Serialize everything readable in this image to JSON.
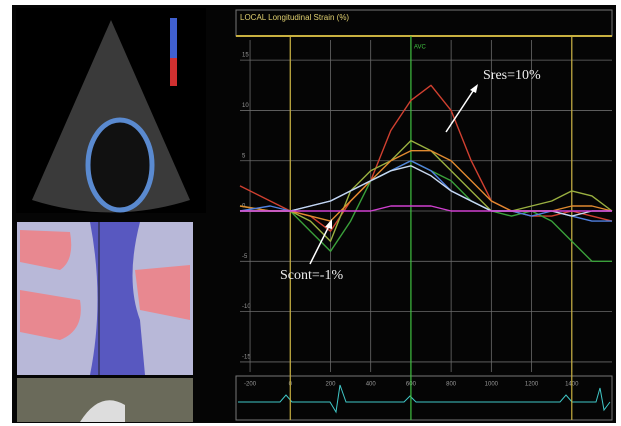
{
  "chart_data": {
    "type": "line",
    "title": "LOCAL  Longitudinal Strain (%)",
    "x": [
      -250,
      -100,
      0,
      100,
      200,
      300,
      400,
      500,
      600,
      700,
      800,
      900,
      1000,
      1100,
      1200,
      1300,
      1400,
      1500,
      1600
    ],
    "series": [
      {
        "color": "#d04030",
        "values": [
          2.5,
          1,
          0,
          -0.5,
          -2,
          1,
          3,
          8,
          11,
          12.5,
          10,
          5,
          1,
          0,
          -0.5,
          -0.5,
          0,
          -0.5,
          -1
        ]
      },
      {
        "color": "#3aa03a",
        "values": [
          0.5,
          0,
          0,
          -2,
          -4,
          -1,
          3,
          4,
          5,
          4,
          3,
          1,
          0,
          -0.5,
          0,
          -1,
          -3,
          -5,
          -5
        ]
      },
      {
        "color": "#9ab040",
        "values": [
          0,
          0,
          0,
          -1,
          -3,
          2,
          4,
          5,
          7,
          6,
          4,
          2,
          0,
          0,
          0.5,
          1,
          2,
          1.5,
          0
        ]
      },
      {
        "color": "#e08a30",
        "values": [
          0.5,
          0,
          0,
          -0.5,
          -1,
          1,
          3,
          5,
          6,
          6,
          5,
          3,
          1,
          0,
          0,
          0,
          0.5,
          0.5,
          0
        ]
      },
      {
        "color": "#5080e0",
        "values": [
          0,
          0.5,
          0,
          0.5,
          1,
          2,
          3,
          4,
          5,
          4,
          2,
          1,
          0,
          0,
          -0.5,
          0,
          -0.5,
          -1,
          -1
        ]
      },
      {
        "color": "#c8d8f0",
        "values": [
          0,
          0,
          0,
          0.5,
          1,
          2,
          3,
          4,
          4.5,
          3.5,
          2,
          1,
          0,
          0,
          0,
          0,
          -0.5,
          0,
          0
        ]
      },
      {
        "color": "#d040d0",
        "values": [
          0,
          0,
          0,
          0,
          0,
          0,
          0,
          0.5,
          0.5,
          0.5,
          0,
          0,
          0,
          0,
          0,
          0,
          0,
          0,
          0
        ]
      }
    ],
    "xlim": [
      -250,
      1600
    ],
    "xticks": [
      -200,
      0,
      200,
      400,
      600,
      800,
      1000,
      1200,
      1400
    ],
    "ylim": [
      -16,
      17
    ],
    "yticks": [
      15,
      10,
      5,
      0,
      -5,
      -10,
      -15
    ],
    "grid": true,
    "markers": [
      {
        "x": 0,
        "color": "#c8b040"
      },
      {
        "x": 600,
        "color": "#40c040",
        "label": "AVC"
      },
      {
        "x": 1400,
        "color": "#c8b040"
      }
    ],
    "annotations": [
      "Sres=10%",
      "Scont=-1%"
    ]
  }
}
